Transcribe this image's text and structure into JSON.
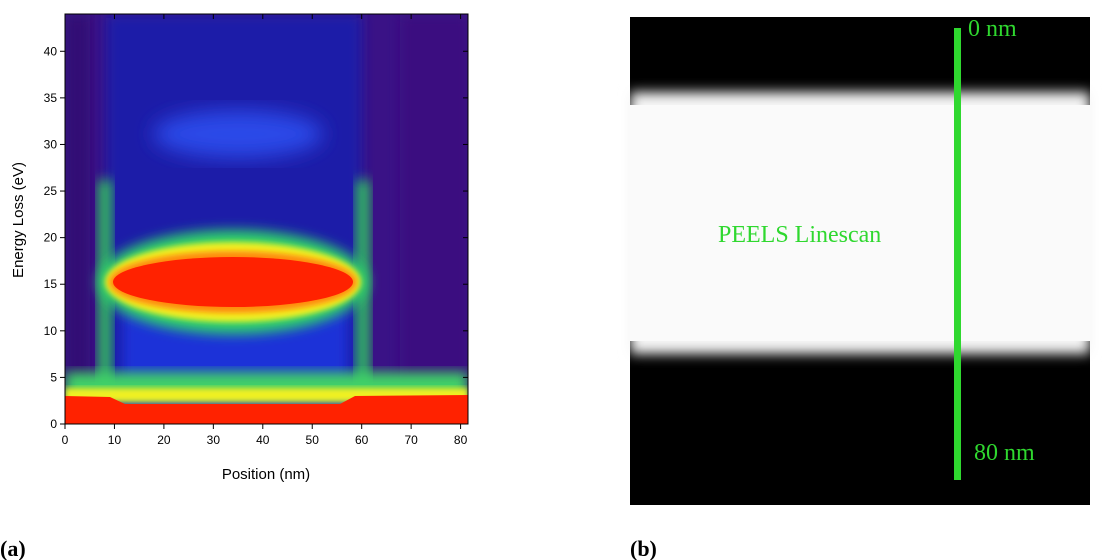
{
  "chart_data": {
    "type": "heatmap",
    "panel_label": "(a)",
    "xlabel": "Position (nm)",
    "ylabel": "Energy Loss (eV)",
    "xlim": [
      0,
      81.5
    ],
    "ylim": [
      0,
      44
    ],
    "xticks": [
      0,
      10,
      20,
      30,
      40,
      50,
      60,
      70,
      80
    ],
    "yticks": [
      0,
      5,
      10,
      15,
      20,
      25,
      30,
      35,
      40
    ]
  },
  "image_panel": {
    "panel_label": "(b)",
    "top_label": "0 nm",
    "bottom_label": "80 nm",
    "line_label": "PEELS Linescan"
  }
}
